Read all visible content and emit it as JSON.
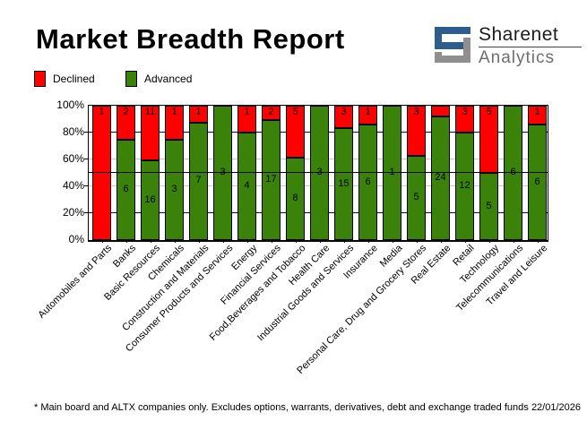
{
  "header": {
    "title": "Market Breadth Report",
    "logo": {
      "line1": "Sharenet",
      "line2": "Analytics"
    }
  },
  "legend": {
    "declined_label": "Declined",
    "advanced_label": "Advanced"
  },
  "footer": {
    "note": "* Main board and ALTX companies only. Excludes options, warrants, derivatives, debt and exchange traded funds",
    "date": "22/01/2026"
  },
  "colors": {
    "declined": "#ff0000",
    "advanced": "#3a820a",
    "grid_major": "#000080",
    "grid_minor": "#c6c6c6",
    "mid_line": "#000000",
    "logo_blue": "#2e5c8c",
    "logo_grey": "#8f8f8f"
  },
  "chart_data": {
    "type": "bar",
    "stacked": true,
    "units": "percent of companies (counts shown as labels)",
    "title": "Market Breadth Report",
    "xlabel": "",
    "ylabel": "",
    "ylim": [
      0,
      100
    ],
    "yticks": [
      "100%",
      "80%",
      "60%",
      "40%",
      "20%",
      "0%"
    ],
    "grid": "horizontal at 20/40/60/80 plus solid reference line at 50%",
    "legend_position": "top-left",
    "categories": [
      "Automobiles and Parts",
      "Banks",
      "Basic Resources",
      "Chemicals",
      "Construction and Materials",
      "Consumer Products and Services",
      "Energy",
      "Financial Services",
      "Food,Beverages and Tobacco",
      "Health Care",
      "Industrial Goods and Services",
      "Insurance",
      "Media",
      "Personal Care, Drug and Grocery Stores",
      "Real Estate",
      "Retail",
      "Technology",
      "Telecommunications",
      "Travel and Leisure"
    ],
    "series": [
      {
        "name": "Declined",
        "color": "#ff0000",
        "values": [
          1,
          2,
          11,
          1,
          1,
          0,
          1,
          2,
          5,
          0,
          3,
          1,
          0,
          3,
          2,
          3,
          5,
          0,
          1
        ],
        "labels": [
          "1",
          "2",
          "11",
          "1",
          "1",
          "",
          "1",
          "2",
          "5",
          "",
          "3",
          "1",
          "",
          "3",
          "",
          "3",
          "5",
          "",
          "1"
        ]
      },
      {
        "name": "Advanced",
        "color": "#3a820a",
        "values": [
          0,
          6,
          16,
          3,
          7,
          3,
          4,
          17,
          8,
          3,
          15,
          6,
          1,
          5,
          24,
          12,
          5,
          6,
          6
        ],
        "labels": [
          "",
          "6",
          "16",
          "3",
          "7",
          "3",
          "4",
          "17",
          "8",
          "3",
          "15",
          "6",
          "1",
          "5",
          "24",
          "12",
          "5",
          "6",
          "6"
        ]
      }
    ]
  }
}
